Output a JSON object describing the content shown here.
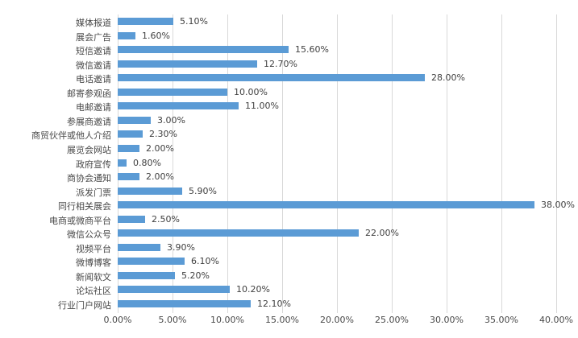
{
  "chart_data": {
    "type": "bar",
    "orientation": "horizontal",
    "title": "",
    "xlabel": "",
    "ylabel": "",
    "categories": [
      "媒体报道",
      "展会广告",
      "短信邀请",
      "微信邀请",
      "电话邀请",
      "邮寄参观函",
      "电邮邀请",
      "参展商邀请",
      "商贸伙伴或他人介绍",
      "展览会网站",
      "政府宣传",
      "商协会通知",
      "派发门票",
      "同行相关展会",
      "电商或微商平台",
      "微信公众号",
      "视频平台",
      "微博博客",
      "新闻软文",
      "论坛社区",
      "行业门户网站"
    ],
    "values": [
      5.1,
      1.6,
      15.6,
      12.7,
      28.0,
      10.0,
      11.0,
      3.0,
      2.3,
      2.0,
      0.8,
      2.0,
      5.9,
      38.0,
      2.5,
      22.0,
      3.9,
      6.1,
      5.2,
      10.2,
      12.1
    ],
    "value_labels": [
      "5.10%",
      "1.60%",
      "15.60%",
      "12.70%",
      "28.00%",
      "10.00%",
      "11.00%",
      "3.00%",
      "2.30%",
      "2.00%",
      "0.80%",
      "2.00%",
      "5.90%",
      "38.00%",
      "2.50%",
      "22.00%",
      "3.90%",
      "6.10%",
      "5.20%",
      "10.20%",
      "12.10%"
    ],
    "x_tick_labels": [
      "0.00%",
      "5.00%",
      "10.00%",
      "15.00%",
      "20.00%",
      "25.00%",
      "30.00%",
      "35.00%",
      "40.00%"
    ],
    "xlim": [
      0,
      40
    ],
    "grid": true,
    "legend": "none",
    "colors": {
      "bar": "#5B9BD5",
      "gridline": "#D9D9D9",
      "axis_text": "#484848",
      "data_label_text": "#404040",
      "background": "#FFFFFF"
    }
  }
}
